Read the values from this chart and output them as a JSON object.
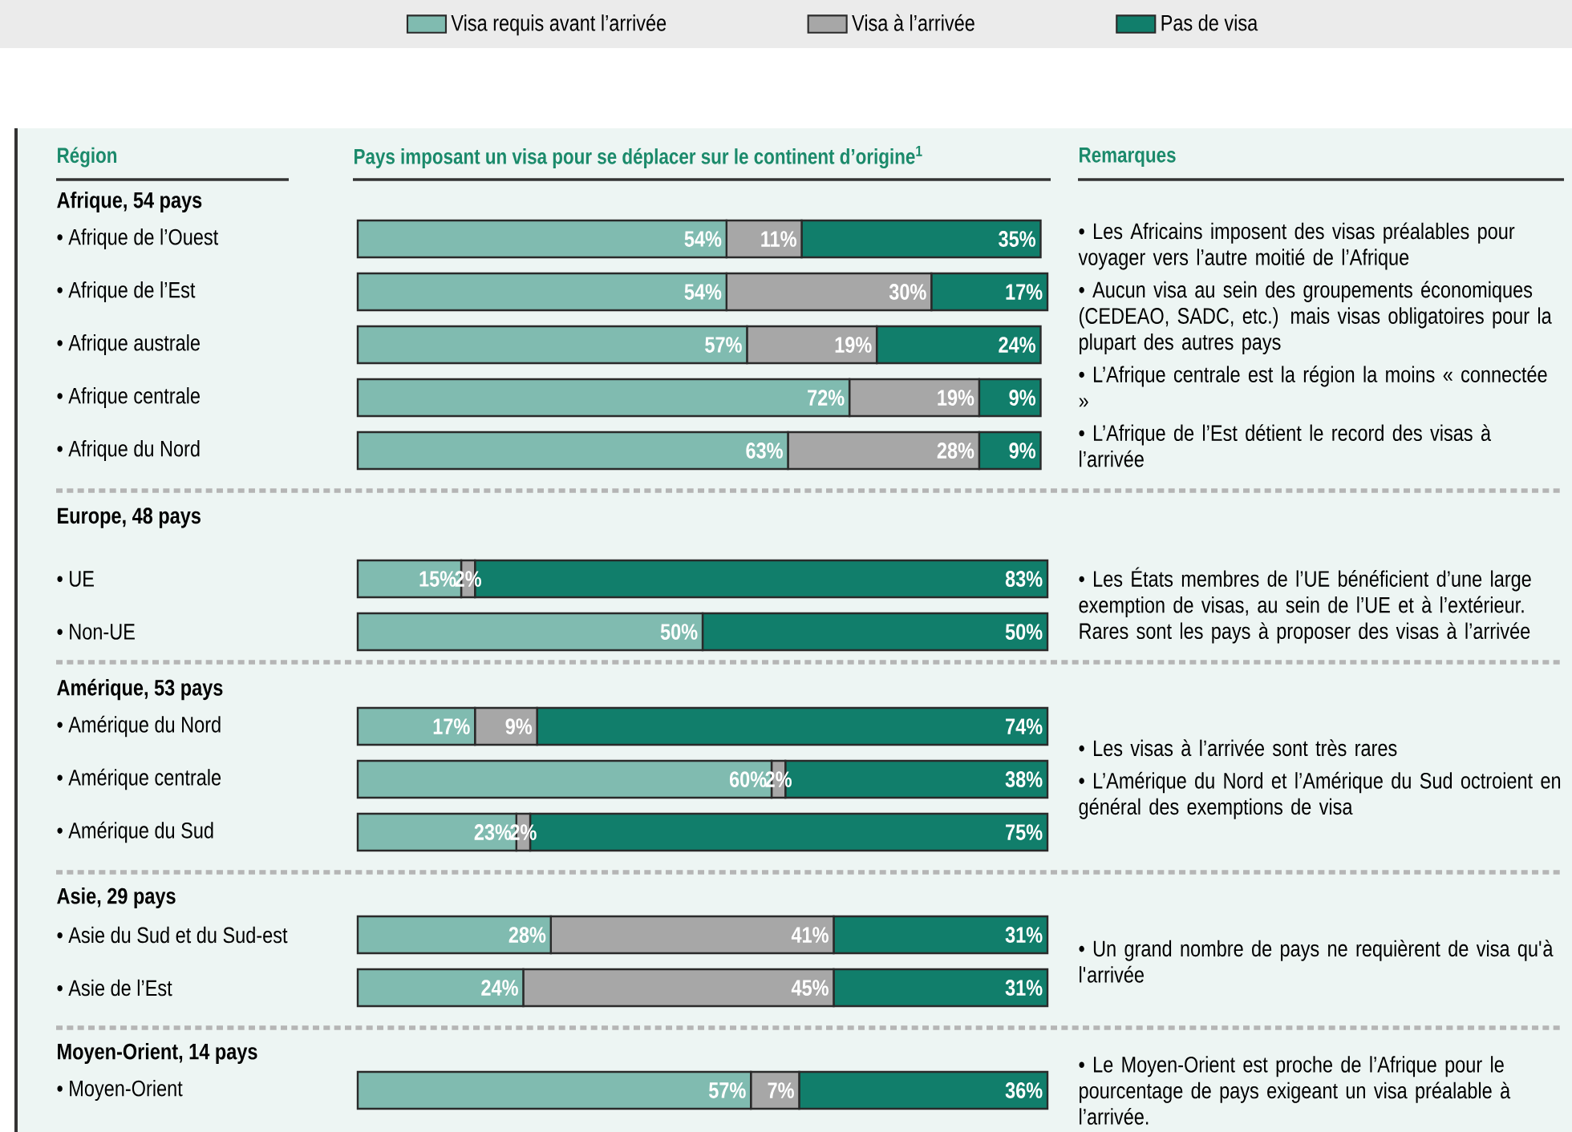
{
  "chart_data": [
    {
      "type": "bar",
      "orientation": "horizontal",
      "stacked": true,
      "tick_labels": "y",
      "legend": "top",
      "ylabel": "Région",
      "xlabel": "Pays imposant un visa pour se déplacer sur le continent d’origine$^{1}$",
      "y2label": "Remarques",
      "title": "Afrique, 54 pays",
      "categories": [
        "• Afrique de l’Ouest",
        "• Afrique de l’Est",
        "• Afrique australe",
        "• Afrique centrale",
        "• Afrique du Nord"
      ],
      "series": [
        {
          "name": "Visa requis avant l’arrivée",
          "color": "#80bbb0",
          "values": [
            54,
            54,
            57,
            72,
            63
          ],
          "value_labels": [
            "54%",
            "54%",
            "57%",
            "72%",
            "63%"
          ]
        },
        {
          "name": "Visa à l’arrivée",
          "color": "#a7a7a7",
          "values": [
            11,
            30,
            19,
            19,
            28
          ],
          "value_labels": [
            "11%",
            "30%",
            "19%",
            "19%",
            "28%"
          ]
        },
        {
          "name": "Pas de visa",
          "color": "#117e6b",
          "values": [
            35,
            17,
            24,
            9,
            9
          ],
          "value_labels": [
            "35%",
            "17%",
            "24%",
            "9%",
            "9%"
          ]
        }
      ],
      "annotations": [
        "• Les Africains imposent des visas préalables pour voyager vers l’autre moitié de l’Afrique",
        "• Aucun visa au sein des groupements économiques (CEDEAO, SADC, etc.) mais visas obligatoires pour la plupart des autres pays",
        "• L’Afrique centrale est la région la moins « connectée »",
        "• L’Afrique de l’Est détient le record des visas à l’arrivée"
      ]
    },
    {
      "type": "bar",
      "orientation": "horizontal",
      "stacked": true,
      "tick_labels": "y",
      "title": "Europe, 48 pays",
      "categories": [
        "• UE",
        "• Non-UE"
      ],
      "series": [
        {
          "color": "#80bbb0",
          "values": [
            15,
            50
          ],
          "value_labels": [
            "15%",
            "50%"
          ]
        },
        {
          "color": "#a7a7a7",
          "values": [
            2,
            null
          ],
          "value_labels": [
            "2%",
            null
          ]
        },
        {
          "color": "#117e6b",
          "values": [
            83,
            50
          ],
          "value_labels": [
            "83%",
            "50%"
          ]
        }
      ],
      "annotations": [
        "• Les États membres de l’UE bénéficient d’une large exemption de visas, au sein de l’UE et à l’extérieur. Rares sont les pays à proposer des visas à l’arrivée"
      ]
    },
    {
      "type": "bar",
      "orientation": "horizontal",
      "stacked": true,
      "tick_labels": "y",
      "title": "Amérique, 53 pays",
      "categories": [
        "• Amérique du Nord",
        "• Amérique centrale",
        "• Amérique du Sud"
      ],
      "series": [
        {
          "color": "#80bbb0",
          "values": [
            17,
            60,
            23
          ],
          "value_labels": [
            "17%",
            "60%",
            "23%"
          ]
        },
        {
          "color": "#a7a7a7",
          "values": [
            9,
            2,
            2
          ],
          "value_labels": [
            "9%",
            "2%",
            "2%"
          ]
        },
        {
          "color": "#117e6b",
          "values": [
            74,
            38,
            75
          ],
          "value_labels": [
            "74%",
            "38%",
            "75%"
          ]
        }
      ],
      "annotations": [
        "• Les visas à l’arrivée sont très rares",
        "• L’Amérique du Nord et l’Amérique du Sud octroient en général des exemptions de visa"
      ]
    },
    {
      "type": "bar",
      "orientation": "horizontal",
      "stacked": true,
      "tick_labels": "y",
      "title": "Asie,  29 pays",
      "categories": [
        "• Asie du Sud et du Sud-est",
        "• Asie de l’Est"
      ],
      "series": [
        {
          "color": "#80bbb0",
          "values": [
            28,
            24
          ],
          "value_labels": [
            "28%",
            "24%"
          ]
        },
        {
          "color": "#a7a7a7",
          "values": [
            41,
            45
          ],
          "value_labels": [
            "41%",
            "45%"
          ]
        },
        {
          "color": "#117e6b",
          "values": [
            31,
            31
          ],
          "value_labels": [
            "31%",
            "31%"
          ]
        }
      ],
      "annotations": [
        "• Un grand nombre de pays ne requièrent de visa qu'à l'arrivée"
      ]
    },
    {
      "type": "bar",
      "orientation": "horizontal",
      "stacked": true,
      "tick_labels": "y",
      "title": "Moyen-Orient, 14 pays",
      "categories": [
        "• Moyen-Orient"
      ],
      "series": [
        {
          "color": "#80bbb0",
          "values": [
            57
          ],
          "value_labels": [
            "57%"
          ]
        },
        {
          "color": "#a7a7a7",
          "values": [
            7
          ],
          "value_labels": [
            "7%"
          ]
        },
        {
          "color": "#117e6b",
          "values": [
            36
          ],
          "value_labels": [
            "36%"
          ]
        }
      ],
      "annotations": [
        "• Le Moyen-Orient est proche de l’Afrique pour le pourcentage de pays exigeant un visa préalable à l’arrivée."
      ]
    }
  ]
}
